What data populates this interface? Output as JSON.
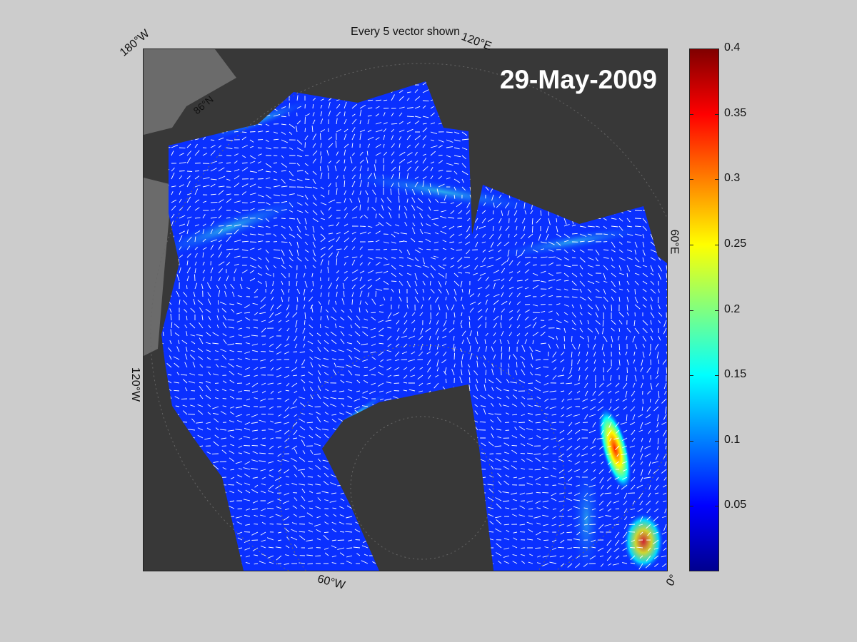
{
  "figure": {
    "title": "Every 5 vector shown",
    "date_label": "29-May-2009",
    "labels": {
      "lon_180w": "180°W",
      "lon_120e": "120°E",
      "lon_60e": "60°E",
      "lon_120w": "120°W",
      "lon_60w": "60°W",
      "lon_0": "0°",
      "lat_86n": "86°N"
    }
  },
  "colorbar": {
    "colormap": "jet",
    "range": [
      0,
      0.4
    ],
    "ticks": [
      "0.4",
      "0.35",
      "0.3",
      "0.25",
      "0.2",
      "0.15",
      "0.1",
      "0.05"
    ]
  },
  "colors": {
    "background": "#cccccc",
    "land": "#383838",
    "ocean_low": "#0a28ff",
    "vector": "#ffffff"
  }
}
